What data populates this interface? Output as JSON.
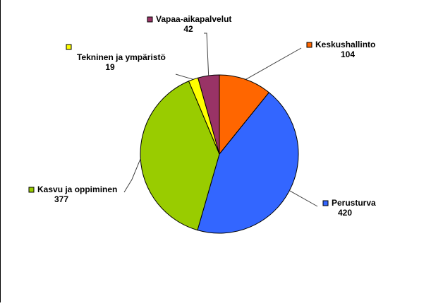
{
  "chart_data": {
    "type": "pie",
    "title": "",
    "categories": [
      "Keskushallinto",
      "Perusturva",
      "Kasvu ja oppiminen",
      "Tekninen ja ympäristö",
      "Vapaa-aikapalvelut"
    ],
    "values": [
      104,
      420,
      377,
      19,
      42
    ],
    "colors": [
      "#FF6600",
      "#3366FF",
      "#99CC00",
      "#FFFF00",
      "#993366"
    ],
    "legend": "none",
    "data_labels": "category name and value"
  }
}
